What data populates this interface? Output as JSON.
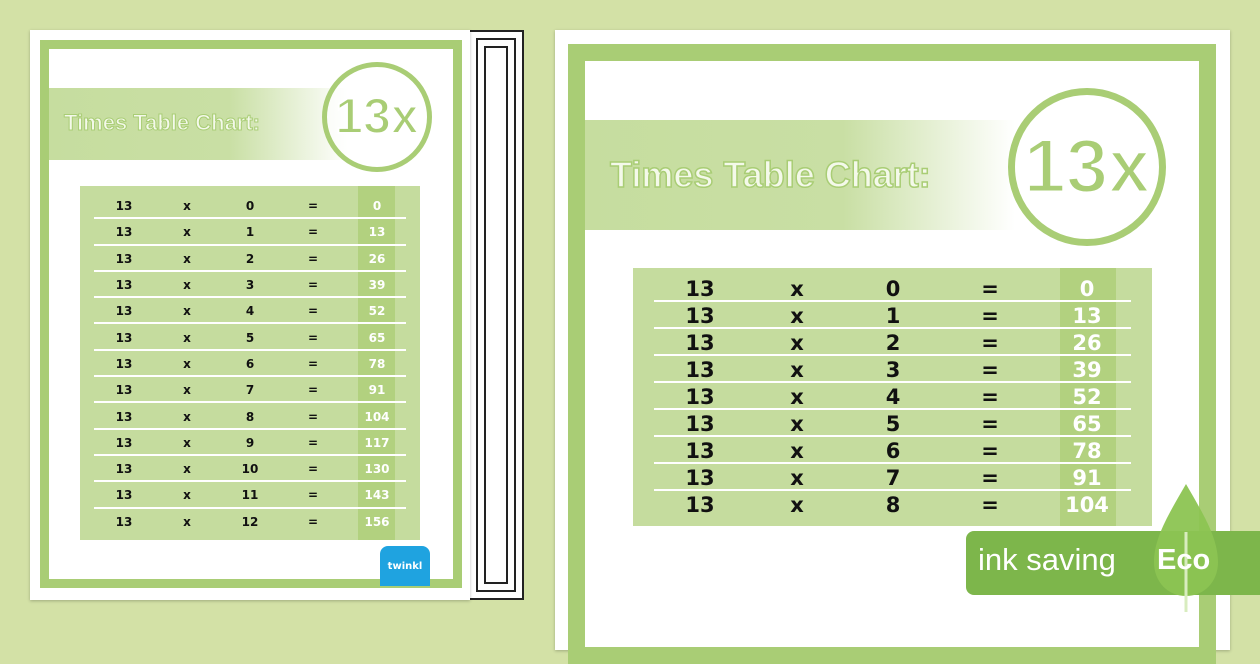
{
  "colors": {
    "background": "#d3e1a6",
    "frame": "#a9cd75",
    "table": "#c5dc9e",
    "answer_stripe": "#b2d17f",
    "eco": "#7db64b",
    "logo": "#1fa3e0"
  },
  "chart": {
    "title": "Times Table Chart:",
    "badge": "13x",
    "rows": [
      {
        "a": "13",
        "op": "x",
        "b": "0",
        "eq": "=",
        "ans": "0"
      },
      {
        "a": "13",
        "op": "x",
        "b": "1",
        "eq": "=",
        "ans": "13"
      },
      {
        "a": "13",
        "op": "x",
        "b": "2",
        "eq": "=",
        "ans": "26"
      },
      {
        "a": "13",
        "op": "x",
        "b": "3",
        "eq": "=",
        "ans": "39"
      },
      {
        "a": "13",
        "op": "x",
        "b": "4",
        "eq": "=",
        "ans": "52"
      },
      {
        "a": "13",
        "op": "x",
        "b": "5",
        "eq": "=",
        "ans": "65"
      },
      {
        "a": "13",
        "op": "x",
        "b": "6",
        "eq": "=",
        "ans": "78"
      },
      {
        "a": "13",
        "op": "x",
        "b": "7",
        "eq": "=",
        "ans": "91"
      },
      {
        "a": "13",
        "op": "x",
        "b": "8",
        "eq": "=",
        "ans": "104"
      },
      {
        "a": "13",
        "op": "x",
        "b": "9",
        "eq": "=",
        "ans": "117"
      },
      {
        "a": "13",
        "op": "x",
        "b": "10",
        "eq": "=",
        "ans": "130"
      },
      {
        "a": "13",
        "op": "x",
        "b": "11",
        "eq": "=",
        "ans": "143"
      },
      {
        "a": "13",
        "op": "x",
        "b": "12",
        "eq": "=",
        "ans": "156"
      }
    ]
  },
  "large_visible_rows": 9,
  "eco_badge": {
    "label": "ink saving",
    "word": "Eco",
    "icon": "leaf-icon"
  },
  "logo": {
    "text": "twinkl"
  }
}
